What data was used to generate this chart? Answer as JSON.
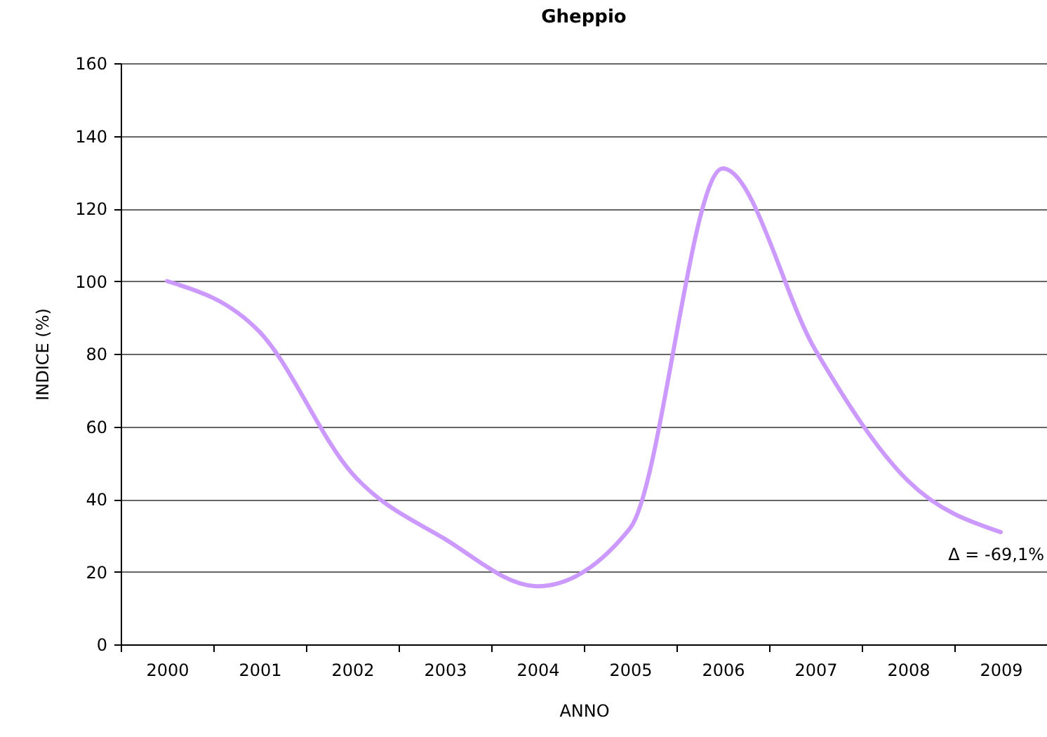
{
  "chart_data": {
    "type": "line",
    "title": "Gheppio",
    "xlabel": "ANNO",
    "ylabel": "INDICE (%)",
    "categories": [
      "2000",
      "2001",
      "2002",
      "2003",
      "2004",
      "2005",
      "2006",
      "2007",
      "2008",
      "2009"
    ],
    "series": [
      {
        "color": "#cc99ff",
        "values": [
          100,
          86,
          47,
          29,
          16,
          32,
          131,
          81,
          45,
          30.9
        ]
      }
    ],
    "ylim": [
      0,
      160
    ],
    "yticks": [
      0,
      20,
      40,
      60,
      80,
      100,
      120,
      140,
      160
    ],
    "grid": "y",
    "annotations": [
      {
        "text": "Δ = -69,1%",
        "x": "2009",
        "y": 30.9
      }
    ]
  }
}
